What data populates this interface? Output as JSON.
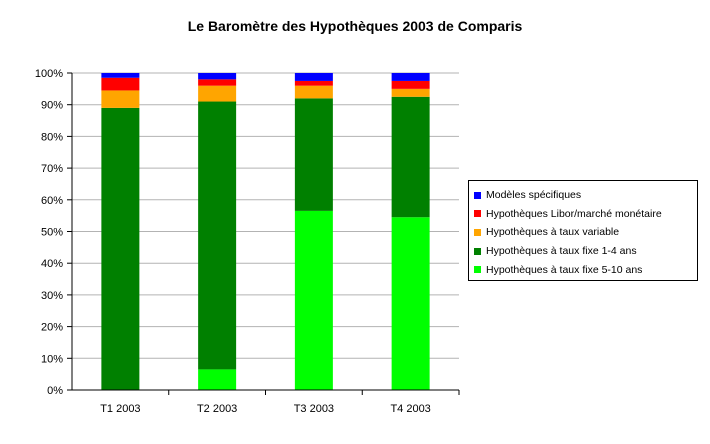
{
  "chart_data": {
    "type": "bar",
    "stacked": true,
    "normalized": true,
    "title": "Le Baromètre des Hypothèques 2003 de Comparis",
    "xlabel": "",
    "ylabel": "",
    "ylim": [
      0,
      100
    ],
    "yticks": [
      "0%",
      "10%",
      "20%",
      "30%",
      "40%",
      "50%",
      "60%",
      "70%",
      "80%",
      "90%",
      "100%"
    ],
    "grid": true,
    "legend_position": "right",
    "categories": [
      "T1 2003",
      "T2 2003",
      "T3 2003",
      "T4 2003"
    ],
    "series": [
      {
        "name": "Hypothèques à taux fixe 5-10 ans",
        "color": "#00ff00",
        "values": [
          0,
          6.5,
          56.5,
          54.5
        ]
      },
      {
        "name": "Hypothèques à taux fixe 1-4 ans",
        "color": "#008000",
        "values": [
          89,
          84.5,
          35.5,
          38
        ]
      },
      {
        "name": "Hypothèques à taux variable",
        "color": "#ffa500",
        "values": [
          5.5,
          5,
          4,
          2.5
        ]
      },
      {
        "name": "Hypothèques Libor/marché monétaire",
        "color": "#ff0000",
        "values": [
          4,
          2,
          1.5,
          2.5
        ]
      },
      {
        "name": "Modèles spécifiques",
        "color": "#0000ff",
        "values": [
          1.5,
          2,
          2.5,
          2.5
        ]
      }
    ],
    "legend_order": [
      "Modèles spécifiques",
      "Hypothèques Libor/marché monétaire",
      "Hypothèques à taux variable",
      "Hypothèques à taux fixe 1-4 ans",
      "Hypothèques à taux fixe 5-10 ans"
    ]
  }
}
